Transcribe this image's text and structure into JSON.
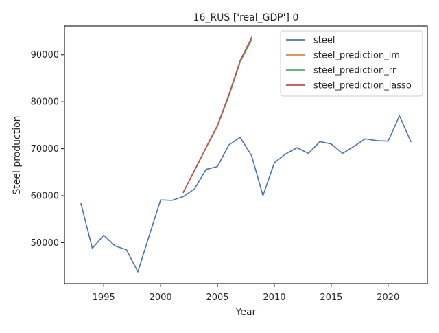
{
  "chart_data": {
    "type": "line",
    "title": "16_RUS ['real_GDP'] 0",
    "xlabel": "Year",
    "ylabel": "Steel production",
    "xlim": [
      1991.55,
      2023.45
    ],
    "ylim": [
      41300,
      96100
    ],
    "xticks": [
      1995,
      2000,
      2005,
      2010,
      2015,
      2020
    ],
    "xtick_labels": [
      "1995",
      "2000",
      "2005",
      "2010",
      "2015",
      "2020"
    ],
    "yticks": [
      50000,
      60000,
      70000,
      80000,
      90000
    ],
    "ytick_labels": [
      "50000",
      "60000",
      "70000",
      "80000",
      "90000"
    ],
    "grid": false,
    "legend_position": "top-right",
    "series": [
      {
        "name": "steel",
        "color": "#4c72b0",
        "x": [
          1993,
          1994,
          1995,
          1996,
          1997,
          1998,
          1999,
          2000,
          2001,
          2002,
          2003,
          2004,
          2005,
          2006,
          2007,
          2008,
          2009,
          2010,
          2011,
          2012,
          2013,
          2014,
          2015,
          2016,
          2017,
          2018,
          2019,
          2020,
          2021,
          2022
        ],
        "y": [
          58300,
          48800,
          51600,
          49300,
          48500,
          43800,
          51500,
          59100,
          59000,
          59800,
          61500,
          65600,
          66200,
          70800,
          72400,
          68500,
          60000,
          67000,
          68900,
          70200,
          69000,
          71500,
          71000,
          69000,
          70500,
          72100,
          71700,
          71600,
          77000,
          71500
        ]
      },
      {
        "name": "steel_prediction_lm",
        "color": "#dd8452",
        "x": [
          2002,
          2003,
          2004,
          2005,
          2006,
          2007,
          2008
        ],
        "y": [
          60800,
          65400,
          70200,
          74800,
          81200,
          88500,
          93200
        ]
      },
      {
        "name": "steel_prediction_rr",
        "color": "#55a868",
        "x": [
          2002,
          2003,
          2004,
          2005,
          2006,
          2007,
          2008
        ],
        "y": [
          60800,
          65400,
          70200,
          74800,
          81200,
          88500,
          93200
        ]
      },
      {
        "name": "steel_prediction_lasso",
        "color": "#c44e52",
        "x": [
          2002,
          2003,
          2004,
          2005,
          2006,
          2007,
          2008
        ],
        "y": [
          60700,
          65500,
          70300,
          75000,
          81500,
          88800,
          93700
        ]
      }
    ]
  }
}
